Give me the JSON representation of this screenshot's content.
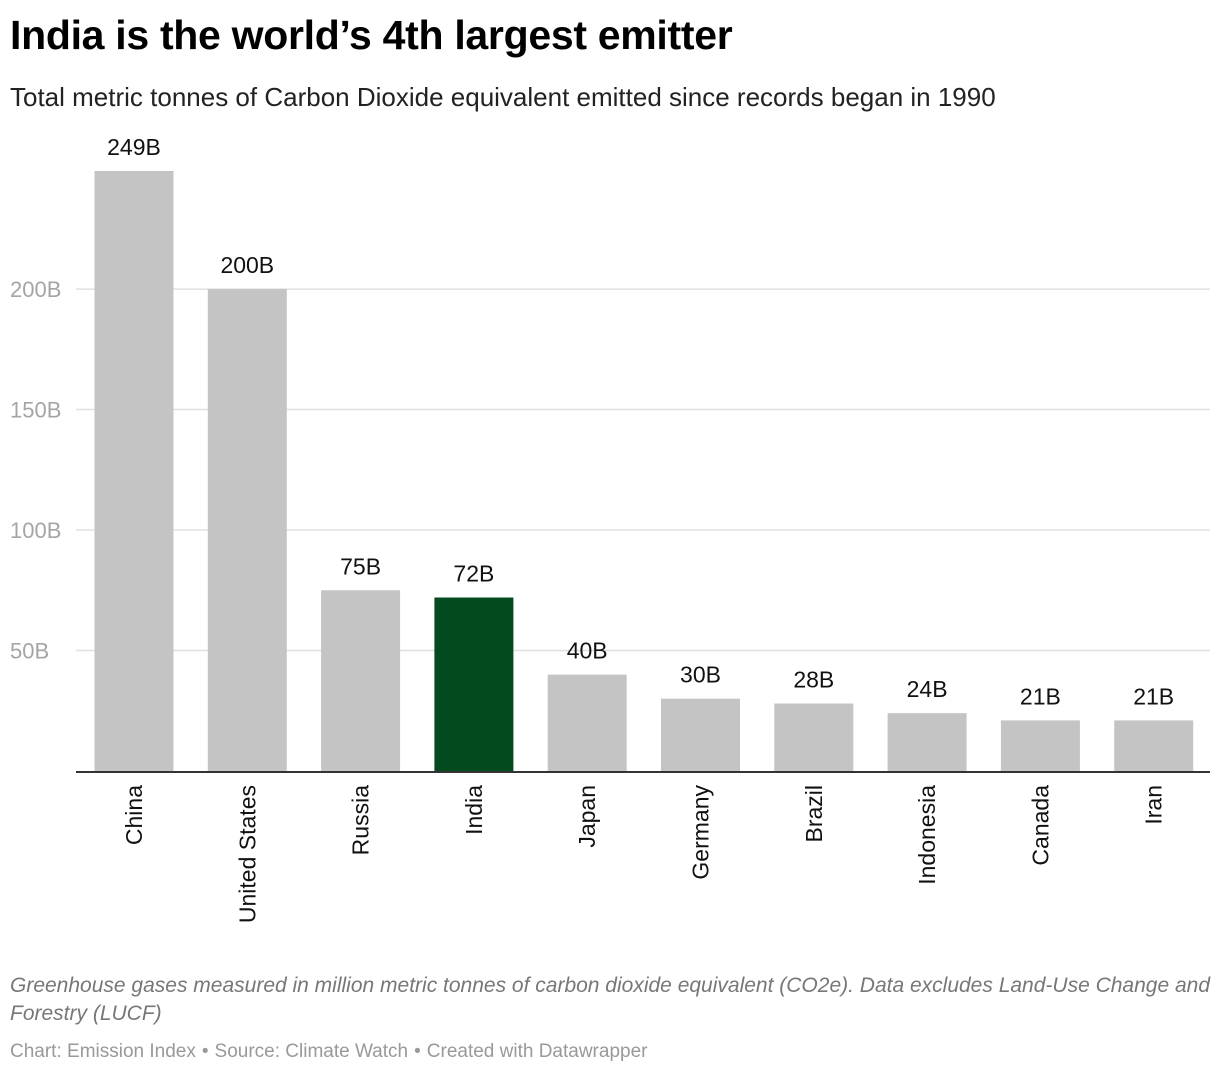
{
  "title": "India is the world’s 4th largest emitter",
  "subtitle": "Total metric tonnes of Carbon Dioxide equivalent emitted since records began in 1990",
  "notes": "Greenhouse gases measured in million metric tonnes of carbon dioxide equivalent (CO2e). Data excludes Land-Use Change and Forestry (LUCF)",
  "footer": {
    "chart_credit": "Chart: Emission Index",
    "source": "Source: Climate Watch",
    "created_with": "Created with Datawrapper",
    "separator": "•"
  },
  "colors": {
    "bar": "#c4c4c4",
    "highlight": "#034b1e",
    "grid": "#e0e0e0",
    "axis": "#333333",
    "tick_label": "#a5a5a5",
    "value_label": "#111111"
  },
  "chart_data": {
    "type": "bar",
    "title": "India is the world’s 4th largest emitter",
    "subtitle": "Total metric tonnes of Carbon Dioxide equivalent emitted since records began in 1990",
    "xlabel": "",
    "ylabel": "",
    "unit": "B",
    "categories": [
      "China",
      "United States",
      "Russia",
      "India",
      "Japan",
      "Germany",
      "Brazil",
      "Indonesia",
      "Canada",
      "Iran"
    ],
    "values": [
      249,
      200,
      75,
      72,
      40,
      30,
      28,
      24,
      21,
      21
    ],
    "value_labels": [
      "249B",
      "200B",
      "75B",
      "72B",
      "40B",
      "30B",
      "28B",
      "24B",
      "21B",
      "21B"
    ],
    "highlight": "India",
    "ylim": [
      0,
      249
    ],
    "yticks": [
      50,
      100,
      150,
      200
    ],
    "ytick_labels": [
      "50B",
      "100B",
      "150B",
      "200B"
    ],
    "grid": true,
    "legend": "none"
  }
}
